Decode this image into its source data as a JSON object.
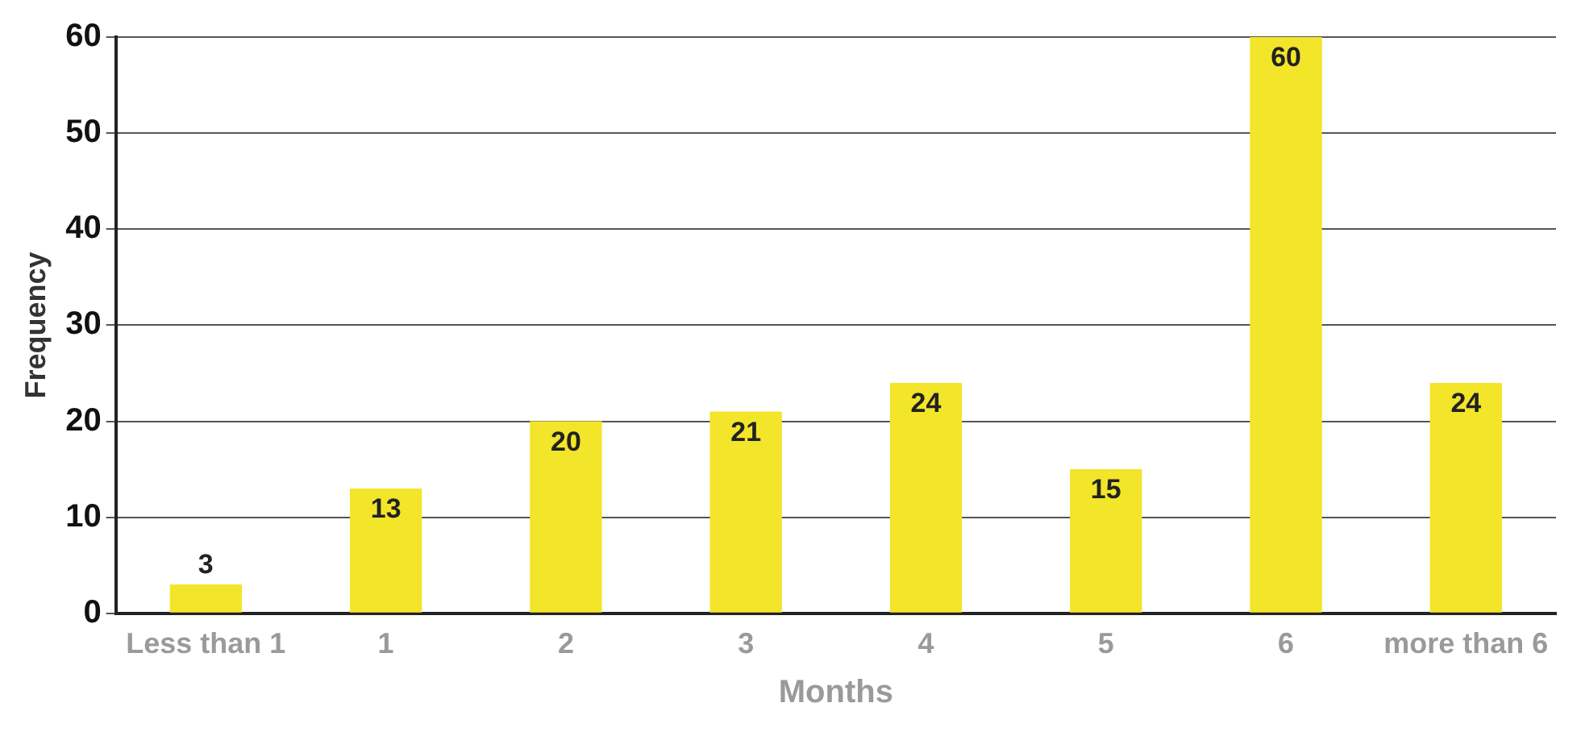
{
  "chart_data": {
    "type": "bar",
    "xlabel": "Months",
    "ylabel": "Frequency",
    "categories": [
      "Less than 1",
      "1",
      "2",
      "3",
      "4",
      "5",
      "6",
      "more than 6"
    ],
    "values": [
      3,
      13,
      20,
      21,
      24,
      15,
      60,
      24
    ],
    "color": "#f2e52a",
    "ylim": [
      0,
      60
    ],
    "yticks": [
      0,
      10,
      20,
      30,
      40,
      50,
      60
    ],
    "grid": "y",
    "data_labels": true,
    "legend": false
  }
}
